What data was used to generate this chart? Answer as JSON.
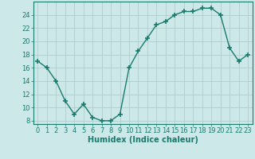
{
  "x": [
    0,
    1,
    2,
    3,
    4,
    5,
    6,
    7,
    8,
    9,
    10,
    11,
    12,
    13,
    14,
    15,
    16,
    17,
    18,
    19,
    20,
    21,
    22,
    23
  ],
  "y": [
    17,
    16,
    14,
    11,
    9,
    10.5,
    8.5,
    8,
    8,
    9,
    16,
    18.5,
    20.5,
    22.5,
    23,
    24,
    24.5,
    24.5,
    25,
    25,
    24,
    19,
    17,
    18
  ],
  "line_color": "#1a7a6e",
  "marker": "+",
  "marker_size": 4,
  "bg_color": "#cce8e8",
  "grid_color": "#b0cccc",
  "xlim": [
    -0.5,
    23.5
  ],
  "ylim": [
    7.5,
    26
  ],
  "yticks": [
    8,
    10,
    12,
    14,
    16,
    18,
    20,
    22,
    24
  ],
  "xticks": [
    0,
    1,
    2,
    3,
    4,
    5,
    6,
    7,
    8,
    9,
    10,
    11,
    12,
    13,
    14,
    15,
    16,
    17,
    18,
    19,
    20,
    21,
    22,
    23
  ],
  "xlabel": "Humidex (Indice chaleur)",
  "line_color_hex": "#1a7a6e",
  "tick_color": "#1a7a6e",
  "xlabel_color": "#1a7a6e",
  "font_size": 6,
  "xlabel_fontsize": 7,
  "linewidth": 1.0
}
